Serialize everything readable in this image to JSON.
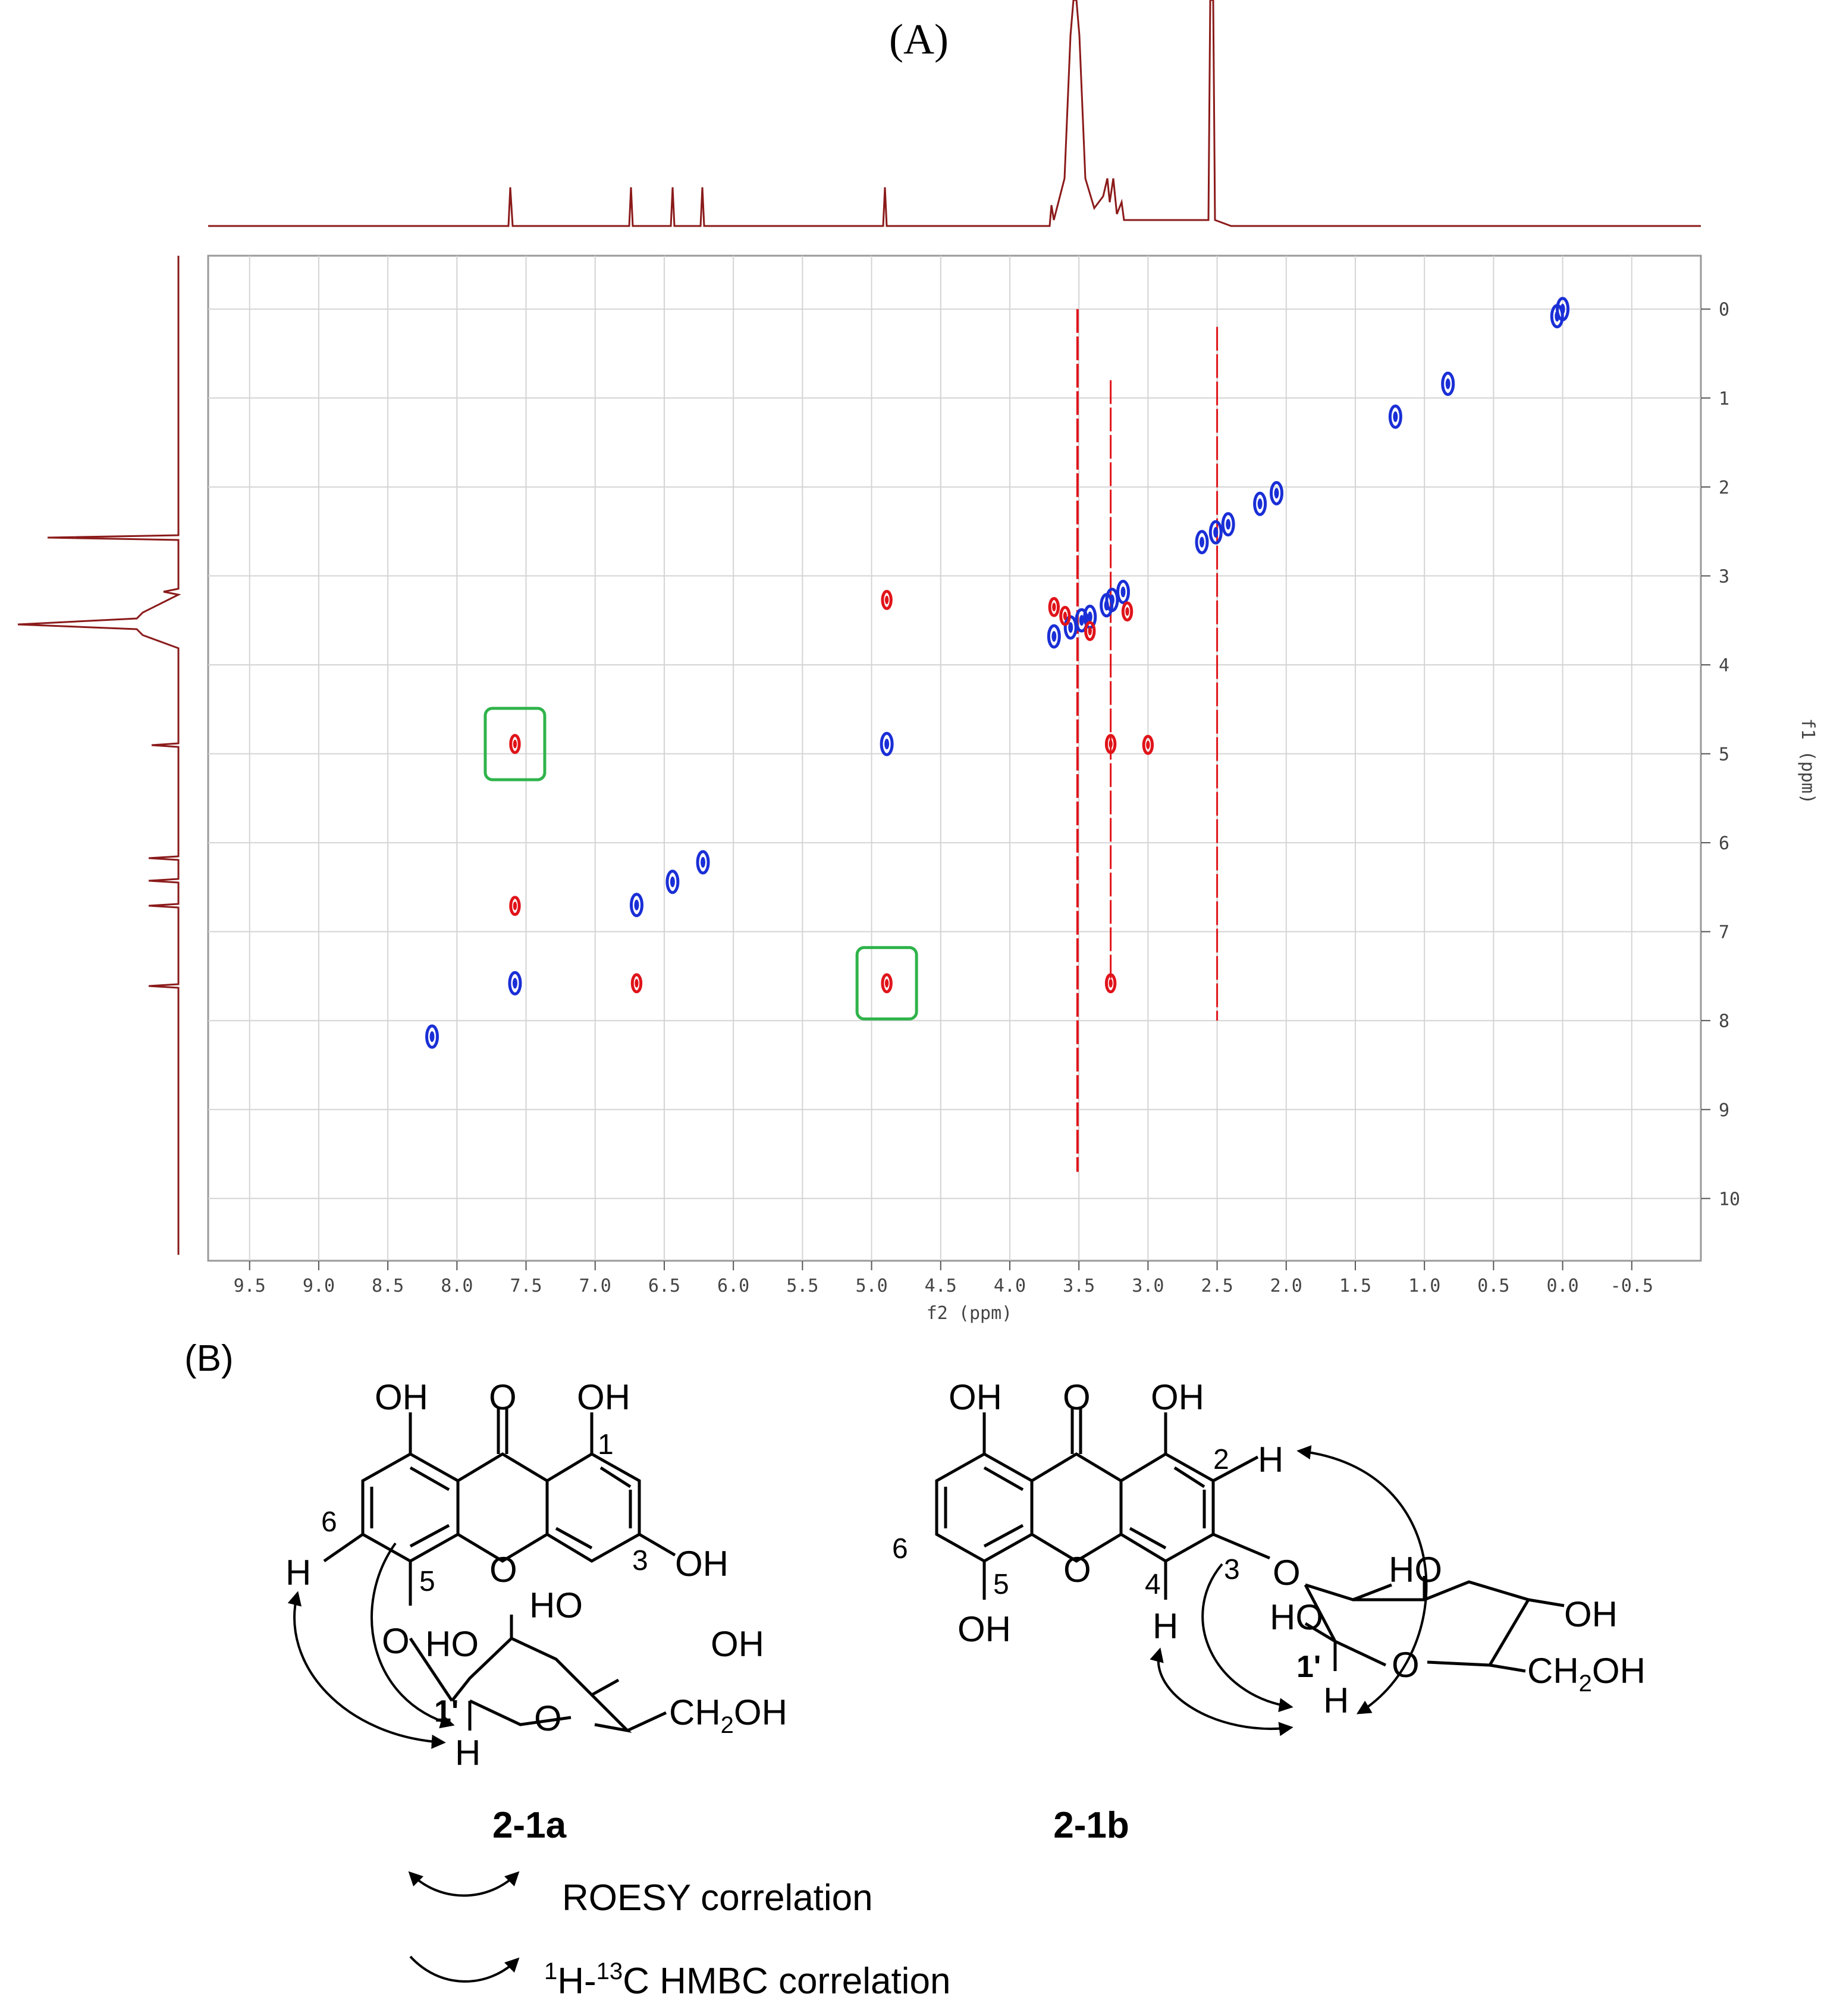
{
  "figure": {
    "panel_a_label": "(A)",
    "panel_b_label": "(B)"
  },
  "chart_data": {
    "type": "scatter",
    "title": "",
    "xlabel": "f2 (ppm)",
    "ylabel": "f1 (ppm)",
    "x_ticks": [
      "9.5",
      "9.0",
      "8.5",
      "8.0",
      "7.5",
      "7.0",
      "6.5",
      "6.0",
      "5.5",
      "5.0",
      "4.5",
      "4.0",
      "3.5",
      "3.0",
      "2.5",
      "2.0",
      "1.5",
      "1.0",
      "0.5",
      "0.0",
      "-0.5"
    ],
    "y_ticks": [
      "0",
      "1",
      "2",
      "3",
      "4",
      "5",
      "6",
      "7",
      "8",
      "9",
      "10"
    ],
    "xlim": [
      9.8,
      -1.0
    ],
    "ylim": [
      -0.6,
      10.7
    ],
    "grid": true,
    "colors": {
      "positive": "#1a2fd6",
      "negative": "#e0141a",
      "projection": "#8b1a1a",
      "highlight": "#2fb34a"
    },
    "series": [
      {
        "sign": "positive",
        "points": [
          {
            "x": 8.18,
            "y": 8.18
          },
          {
            "x": 7.58,
            "y": 7.58
          },
          {
            "x": 6.7,
            "y": 6.7
          },
          {
            "x": 6.44,
            "y": 6.44
          },
          {
            "x": 6.22,
            "y": 6.22
          },
          {
            "x": 4.89,
            "y": 4.89
          },
          {
            "x": 3.68,
            "y": 3.68
          },
          {
            "x": 3.56,
            "y": 3.58
          },
          {
            "x": 3.48,
            "y": 3.5
          },
          {
            "x": 3.42,
            "y": 3.46
          },
          {
            "x": 3.3,
            "y": 3.33
          },
          {
            "x": 3.26,
            "y": 3.27
          },
          {
            "x": 3.18,
            "y": 3.18
          },
          {
            "x": 2.51,
            "y": 2.51
          },
          {
            "x": 2.61,
            "y": 2.62
          },
          {
            "x": 2.42,
            "y": 2.42
          },
          {
            "x": 2.19,
            "y": 2.19
          },
          {
            "x": 2.07,
            "y": 2.07
          },
          {
            "x": 1.21,
            "y": 1.21
          },
          {
            "x": 0.83,
            "y": 0.84
          },
          {
            "x": 0.04,
            "y": 0.08
          },
          {
            "x": 0.0,
            "y": 0.0
          }
        ]
      },
      {
        "sign": "negative",
        "points": [
          {
            "x": 7.58,
            "y": 4.89
          },
          {
            "x": 7.58,
            "y": 6.71
          },
          {
            "x": 6.7,
            "y": 7.58
          },
          {
            "x": 4.89,
            "y": 3.27
          },
          {
            "x": 4.89,
            "y": 7.58
          },
          {
            "x": 3.27,
            "y": 4.89
          },
          {
            "x": 3.27,
            "y": 7.58
          },
          {
            "x": 3.68,
            "y": 3.35
          },
          {
            "x": 3.6,
            "y": 3.45
          },
          {
            "x": 3.42,
            "y": 3.62
          },
          {
            "x": 3.15,
            "y": 3.4
          },
          {
            "x": 3.0,
            "y": 4.9
          }
        ]
      }
    ],
    "highlighted": [
      {
        "x": 7.58,
        "y": 4.89
      },
      {
        "x": 4.89,
        "y": 7.58
      }
    ]
  },
  "structures": {
    "left": {
      "compound_label": "2-1a",
      "oh_1": "OH",
      "o_carbonyl": "O",
      "oh_2": "OH",
      "oh_3": "OH",
      "ring_o": "O",
      "glyco_o": "O",
      "h6": "H",
      "h1p": "H",
      "num_1": "1",
      "num_3": "3",
      "num_5": "5",
      "num_6": "6",
      "prime_1": "1'",
      "sugar_ho": "HO",
      "sugar_ho2": "HO",
      "sugar_oh": "OH",
      "sugar_ring_o": "O",
      "ch2oh_pre": "CH",
      "ch2oh_sub": "2",
      "ch2oh_post": "OH"
    },
    "right": {
      "compound_label": "2-1b",
      "oh_1": "OH",
      "o_carbonyl": "O",
      "oh_2": "OH",
      "oh_5": "OH",
      "ring_o": "O",
      "glyco_o": "O",
      "h2": "H",
      "h4": "H",
      "h1p": "H",
      "num_2": "2",
      "num_3": "3",
      "num_4": "4",
      "num_5": "5",
      "num_6": "6",
      "prime_1": "1'",
      "sugar_ho": "HO",
      "sugar_ho2": "HO",
      "sugar_oh": "OH",
      "sugar_ring_o": "O",
      "ch2oh_pre": "CH",
      "ch2oh_sub": "2",
      "ch2oh_post": "OH"
    }
  },
  "legend": {
    "roesy": "ROESY correlation",
    "hmbc_sup1": "1",
    "hmbc_mid": "H-",
    "hmbc_sup2": "13",
    "hmbc_post": "C HMBC correlation"
  }
}
